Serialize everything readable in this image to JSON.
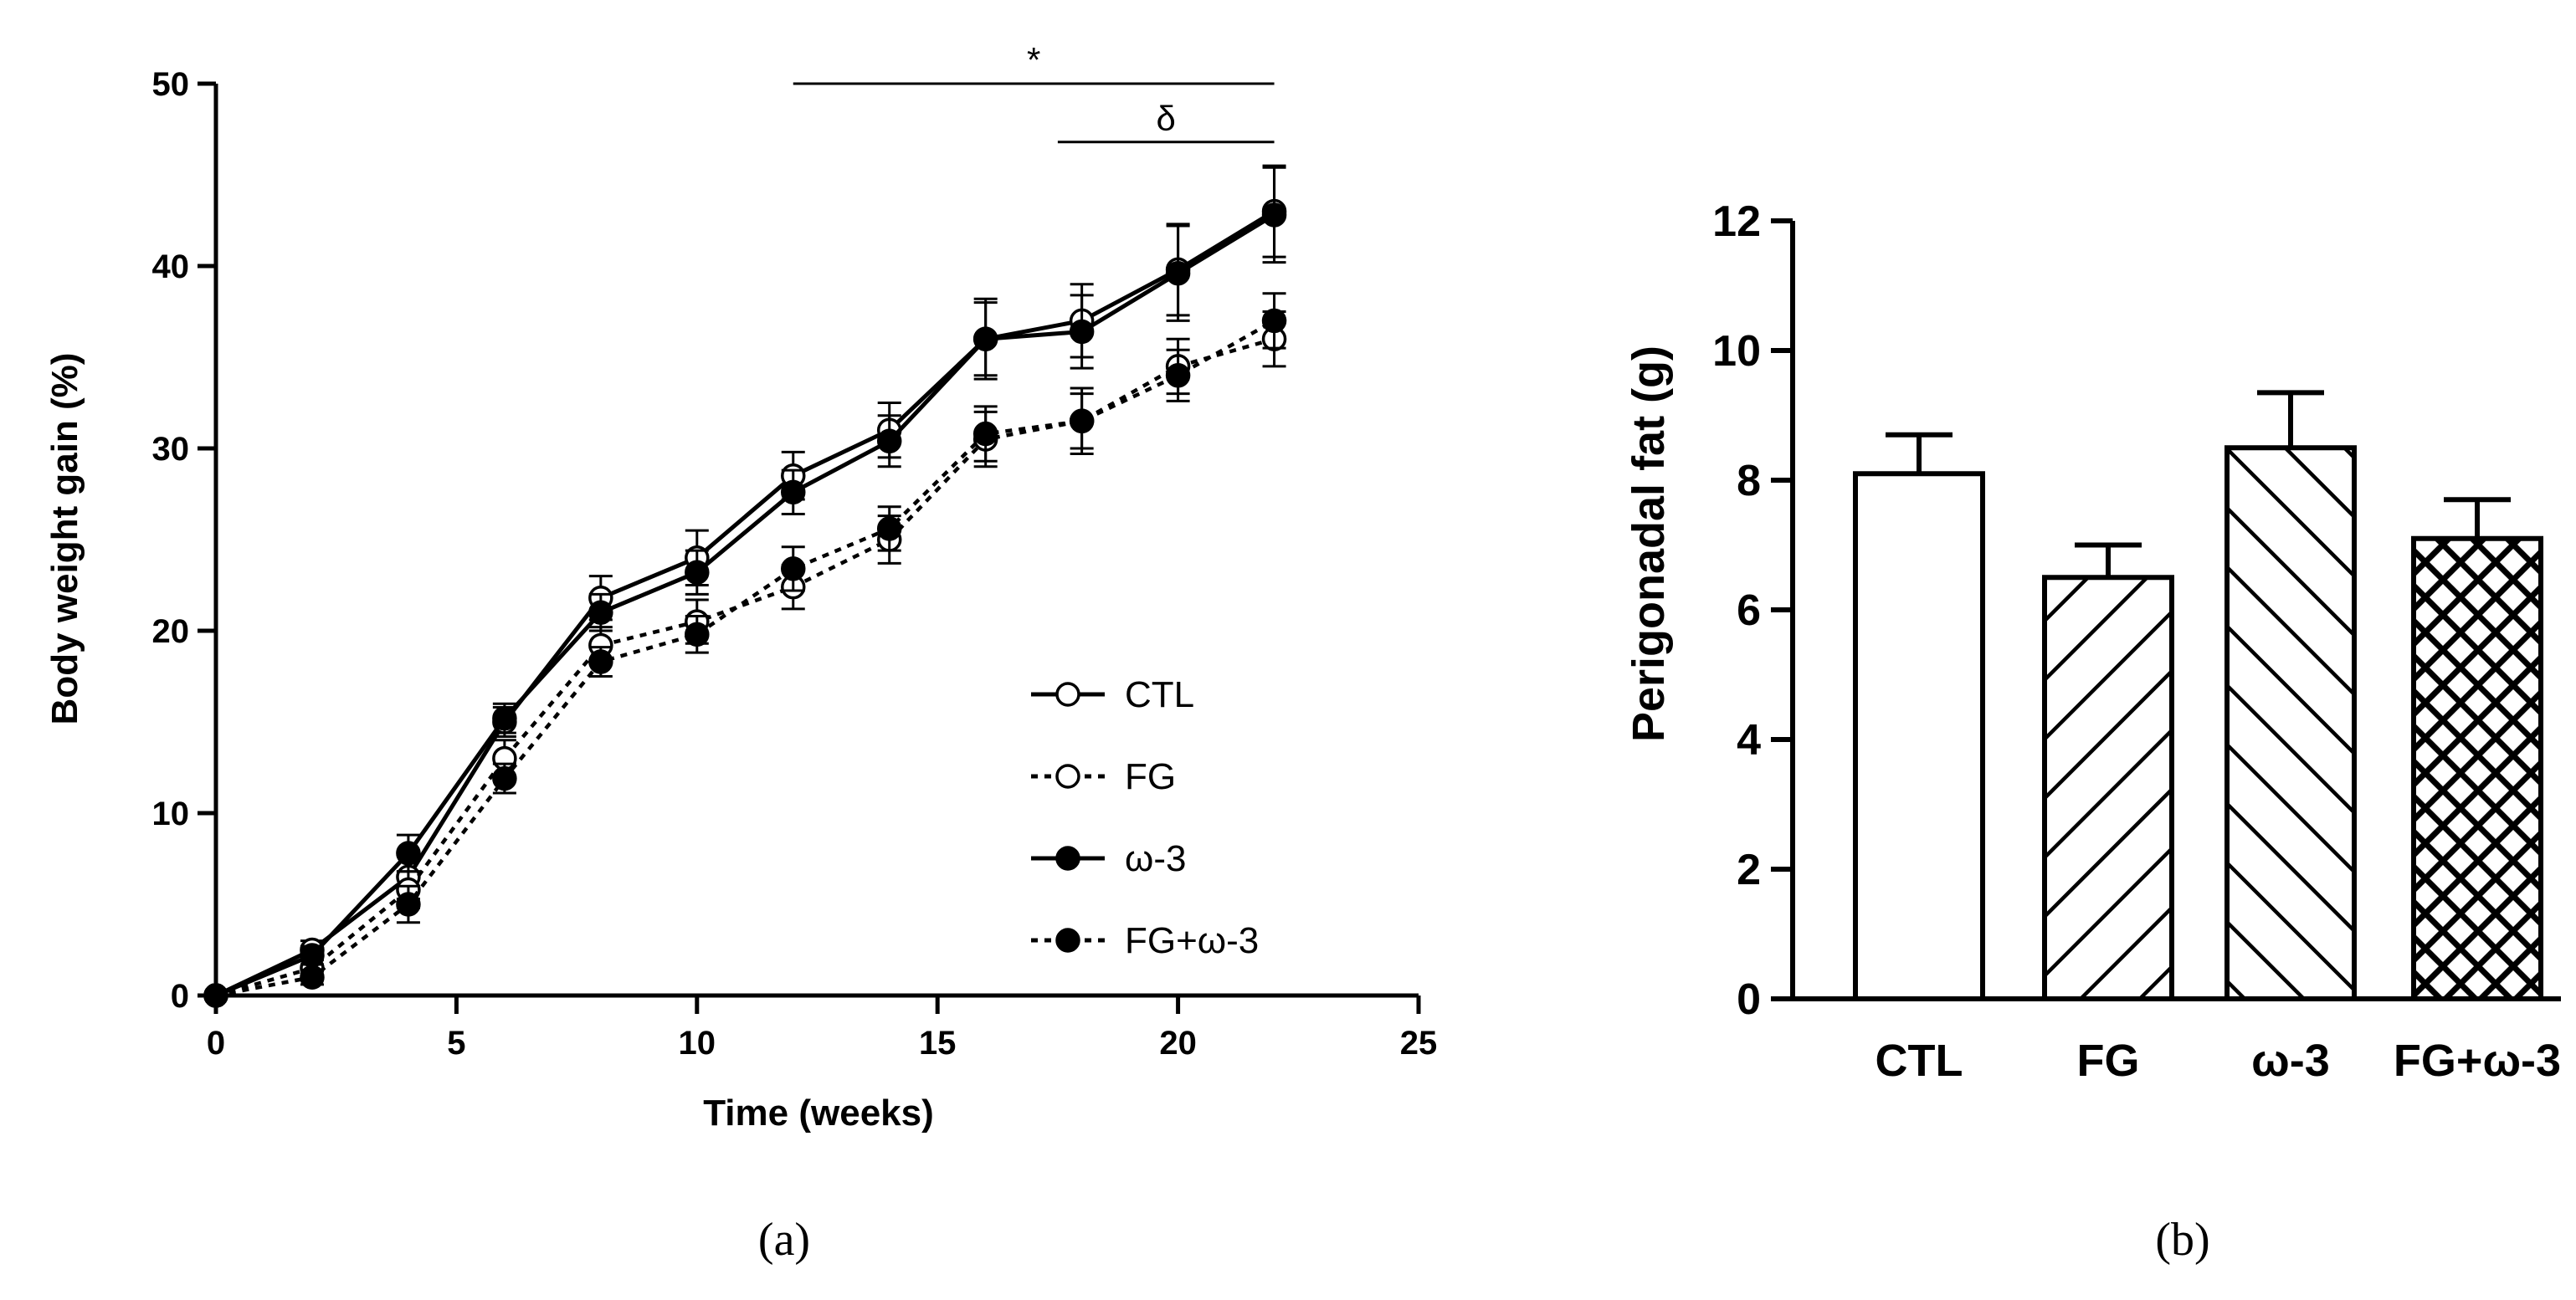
{
  "chart_data": [
    {
      "type": "line",
      "panel_label": "(a)",
      "xlabel": "Time (weeks)",
      "ylabel": "Body weight gain (%)",
      "xlim": [
        0,
        25
      ],
      "ylim": [
        0,
        50
      ],
      "x_ticks": [
        "0",
        "5",
        "10",
        "15",
        "20",
        "25"
      ],
      "y_ticks": [
        "0",
        "10",
        "20",
        "30",
        "40",
        "50"
      ],
      "x": [
        0,
        2,
        4,
        6,
        8,
        10,
        12,
        14,
        16,
        18,
        20,
        22
      ],
      "series": [
        {
          "name": "CTL",
          "line": "solid",
          "marker": "open",
          "values": [
            0,
            2.5,
            6.5,
            15.0,
            21.8,
            24.0,
            28.5,
            31.0,
            36.0,
            37.0,
            39.8,
            43.0
          ],
          "errors": [
            0,
            0.5,
            1.2,
            0.8,
            1.2,
            1.5,
            1.3,
            1.5,
            2.2,
            2.0,
            2.5,
            2.5
          ]
        },
        {
          "name": "FG",
          "line": "dotted",
          "marker": "open",
          "values": [
            0,
            1.5,
            5.8,
            13.0,
            19.2,
            20.5,
            22.4,
            25.0,
            30.5,
            31.5,
            34.5,
            36.0
          ],
          "errors": [
            0,
            0.5,
            1.0,
            1.0,
            1.0,
            1.2,
            1.2,
            1.3,
            1.5,
            1.8,
            1.5,
            1.5
          ]
        },
        {
          "name": "ω-3",
          "line": "solid",
          "marker": "filled",
          "values": [
            0,
            2.2,
            7.8,
            15.2,
            21.0,
            23.2,
            27.6,
            30.4,
            36.0,
            36.4,
            39.6,
            42.8
          ],
          "errors": [
            0,
            0.5,
            1.0,
            0.8,
            1.0,
            1.2,
            1.2,
            1.4,
            2.0,
            2.0,
            2.6,
            2.6
          ]
        },
        {
          "name": "FG+ω-3",
          "line": "dotted",
          "marker": "filled",
          "values": [
            0,
            1.0,
            5.0,
            11.9,
            18.3,
            19.8,
            23.4,
            25.6,
            30.8,
            31.5,
            34.0,
            37.0
          ],
          "errors": [
            0,
            0.4,
            1.0,
            0.8,
            0.8,
            1.0,
            1.2,
            1.2,
            1.5,
            1.5,
            1.4,
            1.5
          ]
        }
      ],
      "legend_position": "lower-right",
      "annotations": [
        {
          "text": "*",
          "x_from": 12,
          "x_to": 22,
          "y": 50
        },
        {
          "text": "δ",
          "x_from": 17.5,
          "x_to": 22,
          "y": 46.8
        }
      ]
    },
    {
      "type": "bar",
      "panel_label": "(b)",
      "xlabel": "",
      "ylabel": "Perigonadal fat (g)",
      "ylim": [
        0,
        12
      ],
      "y_ticks": [
        "0",
        "2",
        "4",
        "6",
        "8",
        "10",
        "12"
      ],
      "categories": [
        "CTL",
        "FG",
        "ω-3",
        "FG+ω-3"
      ],
      "values": [
        8.1,
        6.5,
        8.5,
        7.1
      ],
      "errors": [
        0.6,
        0.5,
        0.85,
        0.6
      ],
      "fills": [
        "none",
        "diagonal-down",
        "diagonal-up",
        "crosshatch"
      ]
    }
  ]
}
